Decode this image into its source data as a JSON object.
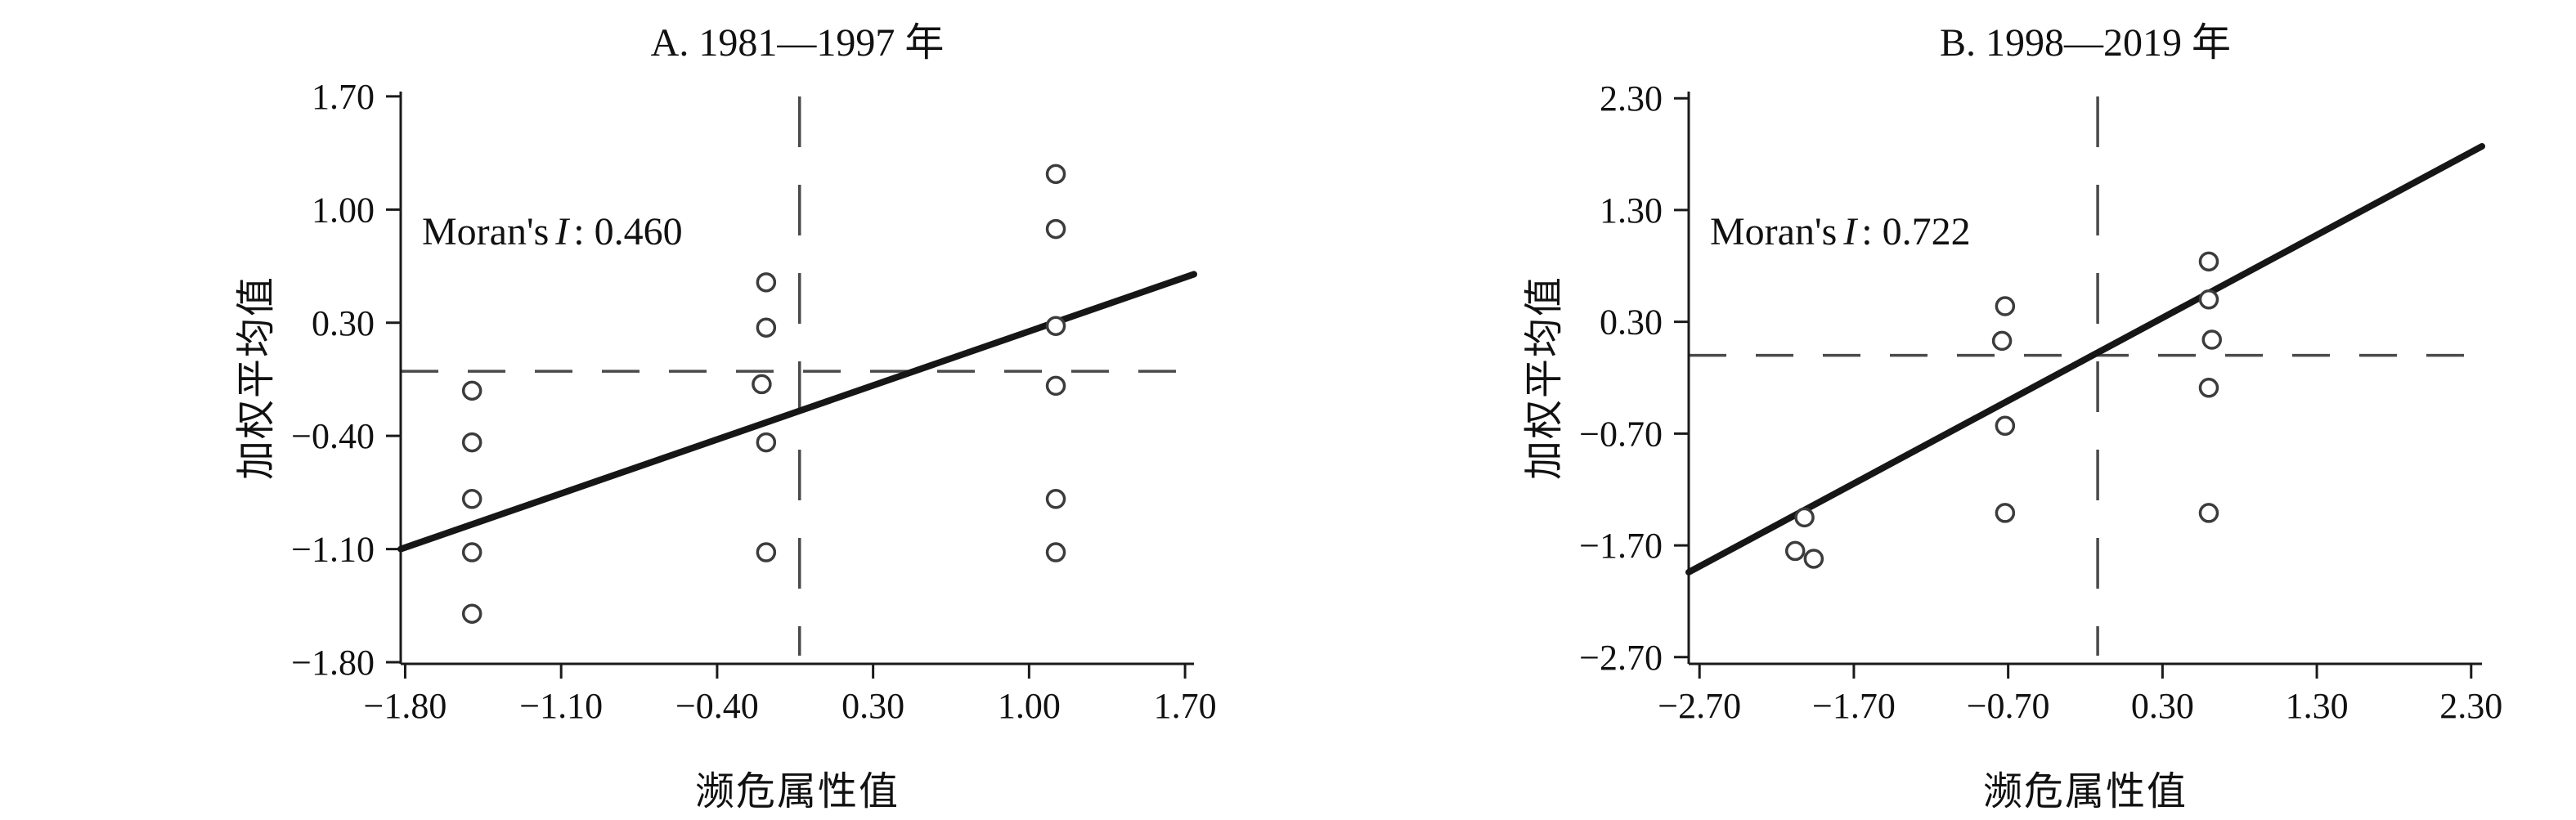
{
  "figure": {
    "background": "#ffffff",
    "colors": {
      "axis": "#1a1a1a",
      "dashed_line": "#4a4a4a",
      "regression_line": "#161616",
      "marker_stroke": "#3c3c3c",
      "marker_fill": "#ffffff"
    }
  },
  "chart_data": [
    {
      "type": "scatter",
      "title": "A. 1981—1997 年",
      "xlabel": "濒危属性值",
      "ylabel": "加权平均值",
      "annotation": {
        "prefix": "Moran's",
        "stat": "I",
        "suffix": ": 0.460"
      },
      "moran_i": 0.46,
      "xlim": [
        -1.82,
        1.74
      ],
      "ylim": [
        -1.81,
        1.73
      ],
      "xticks": [
        -1.8,
        -1.1,
        -0.4,
        0.3,
        1.0,
        1.7
      ],
      "yticks": [
        1.7,
        1.0,
        0.3,
        -0.4,
        -1.1,
        -1.8
      ],
      "grid": false,
      "legend": "none",
      "mean_vline_x": -0.03,
      "mean_hline_y": 0.0,
      "regression_line": {
        "x1": -1.82,
        "y1": -1.1,
        "x2": 1.74,
        "y2": 0.6
      },
      "points": [
        [
          -1.5,
          -0.12
        ],
        [
          -1.5,
          -0.44
        ],
        [
          -1.5,
          -0.79
        ],
        [
          -1.5,
          -1.12
        ],
        [
          -1.5,
          -1.5
        ],
        [
          -0.18,
          0.55
        ],
        [
          -0.18,
          0.27
        ],
        [
          -0.2,
          -0.08
        ],
        [
          -0.18,
          -0.44
        ],
        [
          -0.18,
          -1.12
        ],
        [
          1.12,
          1.22
        ],
        [
          1.12,
          0.88
        ],
        [
          1.12,
          0.28
        ],
        [
          1.12,
          -0.09
        ],
        [
          1.12,
          -0.79
        ],
        [
          1.12,
          -1.12
        ]
      ]
    },
    {
      "type": "scatter",
      "title": "B. 1998—2019 年",
      "xlabel": "濒危属性值",
      "ylabel": "加权平均值",
      "annotation": {
        "prefix": "Moran's",
        "stat": "I",
        "suffix": ": 0.722"
      },
      "moran_i": 0.722,
      "xlim": [
        -2.77,
        2.37
      ],
      "ylim": [
        -2.76,
        2.36
      ],
      "xticks": [
        -2.7,
        -1.7,
        -0.7,
        0.3,
        1.3,
        2.3
      ],
      "yticks": [
        2.3,
        1.3,
        0.3,
        -0.7,
        -1.7,
        -2.7
      ],
      "grid": false,
      "legend": "none",
      "mean_vline_x": -0.12,
      "mean_hline_y": 0.0,
      "regression_line": {
        "x1": -2.77,
        "y1": -1.94,
        "x2": 2.37,
        "y2": 1.87
      },
      "points": [
        [
          -2.02,
          -1.45
        ],
        [
          -2.08,
          -1.75
        ],
        [
          -1.96,
          -1.82
        ],
        [
          -0.72,
          0.44
        ],
        [
          -0.74,
          0.13
        ],
        [
          -0.72,
          -0.63
        ],
        [
          -0.72,
          -1.41
        ],
        [
          0.6,
          0.84
        ],
        [
          0.6,
          0.5
        ],
        [
          0.62,
          0.14
        ],
        [
          0.6,
          -0.29
        ],
        [
          0.6,
          -1.41
        ]
      ]
    }
  ]
}
